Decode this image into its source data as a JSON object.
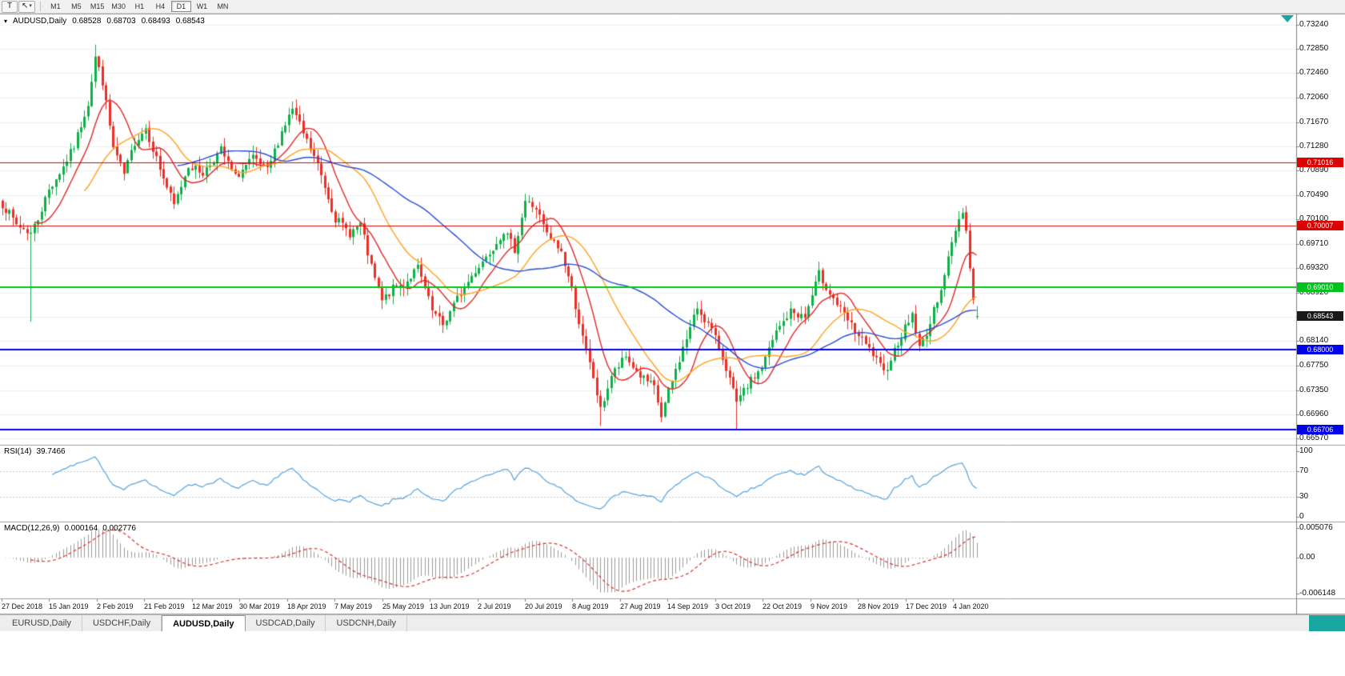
{
  "toolbar": {
    "text_tool_label": "T",
    "cursor_tool_icon": "↖",
    "caret_icon": "▾",
    "timeframes": [
      "M1",
      "M5",
      "M15",
      "M30",
      "H1",
      "H4",
      "D1",
      "W1",
      "MN"
    ],
    "active_timeframe": "D1"
  },
  "chart_header": {
    "marker": "▾",
    "symbol": "AUDUSD,Daily",
    "open": "0.68528",
    "high": "0.68703",
    "low": "0.68493",
    "close": "0.68543"
  },
  "rsi": {
    "label": "RSI(14)",
    "value": "39.7466",
    "period": 14,
    "levels": [
      70,
      30
    ],
    "ticks": [
      {
        "label": "100",
        "value": 100
      },
      {
        "label": "70",
        "value": 70
      },
      {
        "label": "30",
        "value": 30
      },
      {
        "label": "0",
        "value": 0
      }
    ]
  },
  "macd": {
    "label": "MACD(12,26,9)",
    "main_value": "0.000164",
    "signal_value": "0.002776",
    "fast": 12,
    "slow": 26,
    "signal": 9,
    "range": {
      "max": 0.005076,
      "min": -0.006148
    },
    "ticks": [
      {
        "label": "0.005076",
        "value": 0.005076
      },
      {
        "label": "0.00",
        "value": 0
      },
      {
        "label": "-0.006148",
        "value": -0.006148
      }
    ]
  },
  "tabs": {
    "items": [
      "EURUSD,Daily",
      "USDCHF,Daily",
      "AUDUSD,Daily",
      "USDCAD,Daily",
      "USDCNH,Daily"
    ],
    "active": "AUDUSD,Daily"
  },
  "colors": {
    "up": "#0db146",
    "down": "#ee2e24",
    "rsi_line": "#55a3de",
    "macd_hist": "#9a9a9a",
    "macd_signal": "#e03030",
    "grid": "#f0f0f0",
    "panel_border": "#a0a0a0",
    "axis_line": "#808080",
    "level_line": "#c8c8c8",
    "teal": "#18a6a0",
    "current_tag_bg": "#1a1a1a"
  },
  "chart_data": {
    "type": "candlestick",
    "title": "AUDUSD,Daily",
    "num_candles": 273,
    "seed": 7,
    "y_ticks": [
      "0.73240",
      "0.72850",
      "0.72460",
      "0.72060",
      "0.71670",
      "0.71280",
      "0.70890",
      "0.70490",
      "0.70100",
      "0.69710",
      "0.69320",
      "0.68920",
      "0.68530",
      "0.68140",
      "0.67750",
      "0.67350",
      "0.66960",
      "0.66570"
    ],
    "x_labels": [
      "27 Dec 2018",
      "15 Jan 2019",
      "2 Feb 2019",
      "21 Feb 2019",
      "12 Mar 2019",
      "30 Mar 2019",
      "18 Apr 2019",
      "7 May 2019",
      "25 May 2019",
      "13 Jun 2019",
      "2 Jul 2019",
      "20 Jul 2019",
      "8 Aug 2019",
      "27 Aug 2019",
      "14 Sep 2019",
      "3 Oct 2019",
      "22 Oct 2019",
      "9 Nov 2019",
      "28 Nov 2019",
      "17 Dec 2019",
      "4 Jan 2020"
    ],
    "hlines": [
      {
        "price": 0.71016,
        "label": "0.71016",
        "color": "#dd0202",
        "width": 1
      },
      {
        "price": 0.70007,
        "label": "0.70007",
        "color": "#dd0202",
        "width": 1
      },
      {
        "price": 0.6901,
        "label": "0.69010",
        "color": "#00c41d",
        "width": 2
      },
      {
        "price": 0.68,
        "label": "0.68000",
        "color": "#0202e8",
        "width": 2
      },
      {
        "price": 0.66706,
        "label": "0.66706",
        "color": "#0202e8",
        "width": 2
      }
    ],
    "current_price": {
      "label": "0.68543",
      "value": 0.68543
    },
    "last_candle": {
      "o": 0.68528,
      "h": 0.68703,
      "l": 0.68493,
      "c": 0.68543
    },
    "moving_averages": [
      {
        "period": 10,
        "color": "#e02828"
      },
      {
        "period": 24,
        "color": "#ffa21f"
      },
      {
        "period": 50,
        "color": "#2b4fd6"
      }
    ],
    "close_anchors": [
      [
        0,
        0.7035
      ],
      [
        4,
        0.7002
      ],
      [
        8,
        0.6988
      ],
      [
        10,
        0.7012
      ],
      [
        13,
        0.7058
      ],
      [
        17,
        0.7095
      ],
      [
        20,
        0.7128
      ],
      [
        24,
        0.7198
      ],
      [
        26,
        0.7272
      ],
      [
        28,
        0.7232
      ],
      [
        31,
        0.7125
      ],
      [
        34,
        0.7082
      ],
      [
        37,
        0.7135
      ],
      [
        40,
        0.7158
      ],
      [
        44,
        0.7092
      ],
      [
        48,
        0.7032
      ],
      [
        52,
        0.7098
      ],
      [
        56,
        0.7085
      ],
      [
        61,
        0.7122
      ],
      [
        65,
        0.7078
      ],
      [
        70,
        0.7108
      ],
      [
        74,
        0.7088
      ],
      [
        78,
        0.7152
      ],
      [
        81,
        0.7188
      ],
      [
        84,
        0.7148
      ],
      [
        88,
        0.7098
      ],
      [
        93,
        0.7012
      ],
      [
        97,
        0.6988
      ],
      [
        100,
        0.7002
      ],
      [
        103,
        0.6932
      ],
      [
        106,
        0.6878
      ],
      [
        109,
        0.6898
      ],
      [
        112,
        0.6905
      ],
      [
        116,
        0.6932
      ],
      [
        120,
        0.6862
      ],
      [
        123,
        0.684
      ],
      [
        127,
        0.6882
      ],
      [
        132,
        0.6928
      ],
      [
        136,
        0.6958
      ],
      [
        140,
        0.6992
      ],
      [
        143,
        0.6962
      ],
      [
        146,
        0.704
      ],
      [
        149,
        0.7028
      ],
      [
        152,
        0.6985
      ],
      [
        156,
        0.6958
      ],
      [
        159,
        0.6898
      ],
      [
        162,
        0.6818
      ],
      [
        165,
        0.6755
      ],
      [
        167,
        0.6702
      ],
      [
        170,
        0.6758
      ],
      [
        174,
        0.6788
      ],
      [
        178,
        0.6758
      ],
      [
        182,
        0.6738
      ],
      [
        184,
        0.6692
      ],
      [
        186,
        0.6732
      ],
      [
        190,
        0.6802
      ],
      [
        194,
        0.6868
      ],
      [
        198,
        0.6832
      ],
      [
        202,
        0.6772
      ],
      [
        205,
        0.6712
      ],
      [
        208,
        0.6742
      ],
      [
        212,
        0.6772
      ],
      [
        216,
        0.6828
      ],
      [
        220,
        0.6862
      ],
      [
        224,
        0.6852
      ],
      [
        228,
        0.6922
      ],
      [
        231,
        0.6892
      ],
      [
        235,
        0.6855
      ],
      [
        239,
        0.6822
      ],
      [
        243,
        0.6792
      ],
      [
        246,
        0.6762
      ],
      [
        250,
        0.6812
      ],
      [
        254,
        0.6858
      ],
      [
        256,
        0.6802
      ],
      [
        259,
        0.6842
      ],
      [
        263,
        0.6922
      ],
      [
        266,
        0.6995
      ],
      [
        268,
        0.7026
      ],
      [
        269,
        0.6992
      ],
      [
        270,
        0.6932
      ],
      [
        271,
        0.688
      ],
      [
        272,
        0.68543
      ]
    ],
    "special_wicks": [
      {
        "i": 8,
        "low": 0.6845
      },
      {
        "i": 26,
        "high": 0.7292
      },
      {
        "i": 123,
        "low": 0.6827
      },
      {
        "i": 167,
        "low": 0.6677
      },
      {
        "i": 205,
        "low": 0.6672
      },
      {
        "i": 269,
        "high": 0.7032
      }
    ]
  }
}
